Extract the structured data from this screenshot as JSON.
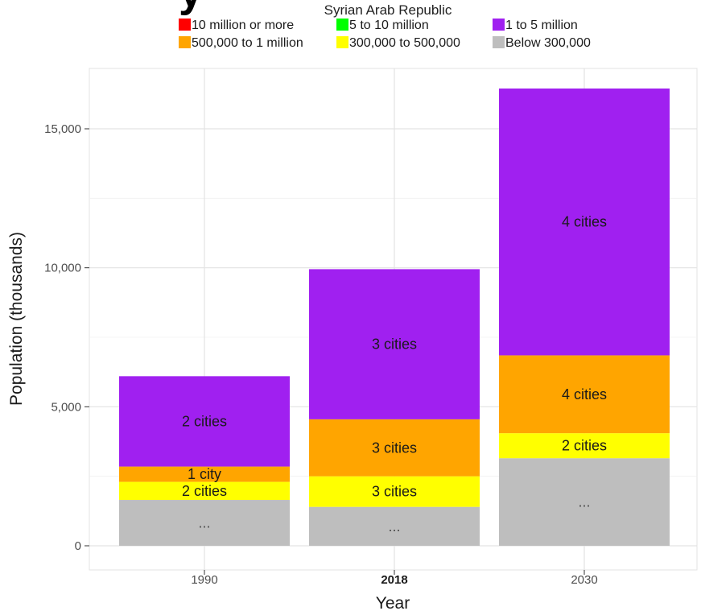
{
  "header": {
    "big_title": "y",
    "subtitle": "Syrian Arab Republic"
  },
  "colors": {
    "10 million or more": "#ff0000",
    "5 to 10 million": "#00ff00",
    "1 to 5 million": "#a020f0",
    "500,000 to 1 million": "#ffa500",
    "300,000 to 500,000": "#ffff00",
    "Below 300,000": "#bebebe",
    "grid": "#e3e3e3",
    "panel_border": "#e3e3e3"
  },
  "legend": [
    "10 million or more",
    "5 to 10 million",
    "1 to 5 million",
    "500,000 to 1 million",
    "300,000 to 500,000",
    "Below 300,000"
  ],
  "chart_data": {
    "type": "bar",
    "stacked": true,
    "categories": [
      "1990",
      "2018",
      "2030"
    ],
    "highlighted_category": "2018",
    "xlabel": "Year",
    "ylabel": "Population (thousands)",
    "ylim": [
      0,
      16500
    ],
    "yticks": [
      0,
      5000,
      10000,
      15000
    ],
    "ytick_labels": [
      "0",
      "5,000",
      "10,000",
      "15,000"
    ],
    "grid": true,
    "legend_position": "top",
    "series": [
      {
        "name": "Below 300,000",
        "values": [
          1650,
          1400,
          3150
        ],
        "labels": [
          "...",
          "...",
          "..."
        ]
      },
      {
        "name": "300,000 to 500,000",
        "values": [
          650,
          1100,
          900
        ],
        "labels": [
          "2 cities",
          "3 cities",
          "2 cities"
        ]
      },
      {
        "name": "500,000 to 1 million",
        "values": [
          550,
          2050,
          2800
        ],
        "labels": [
          "1 city",
          "3 cities",
          "4 cities"
        ]
      },
      {
        "name": "1 to 5 million",
        "values": [
          3250,
          5400,
          9600
        ],
        "labels": [
          "2 cities",
          "3 cities",
          "4 cities"
        ]
      }
    ]
  }
}
